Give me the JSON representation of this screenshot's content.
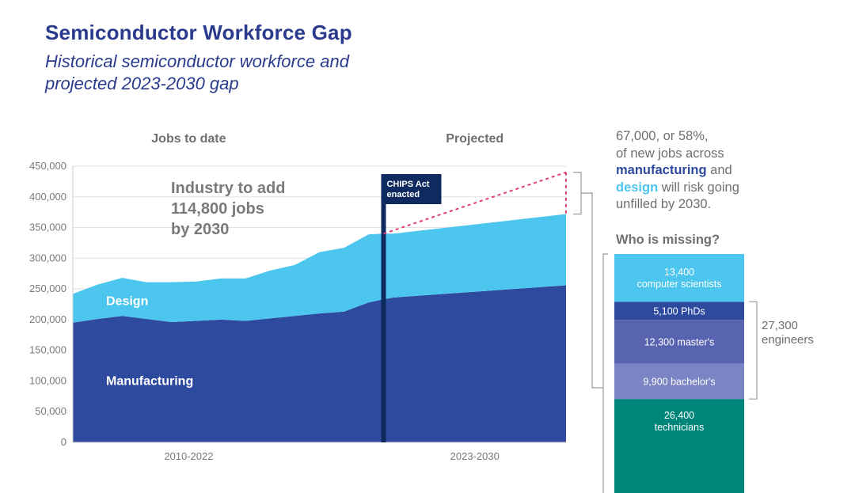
{
  "header": {
    "title": "Semiconductor Workforce Gap",
    "subtitle_line1": "Historical semiconductor workforce and",
    "subtitle_line2": "projected 2023-2030 gap"
  },
  "chart_data": [
    {
      "type": "area",
      "stacked": true,
      "ylim": [
        0,
        450000
      ],
      "yticks": [
        0,
        50000,
        100000,
        150000,
        200000,
        250000,
        300000,
        350000,
        400000,
        450000
      ],
      "ytick_labels": [
        "0",
        "50,000",
        "100,000",
        "150,000",
        "200,000",
        "250,000",
        "300,000",
        "350,000",
        "400,000",
        "450,000"
      ],
      "x_start": 2010,
      "x_end": 2030,
      "x_labels": [
        {
          "text": "2010-2022",
          "x": 2014.7
        },
        {
          "text": "2023-2030",
          "x": 2026.3
        }
      ],
      "section_labels": [
        {
          "text": "Jobs to date",
          "x": 2014.7
        },
        {
          "text": "Projected",
          "x": 2026.3
        }
      ],
      "x": [
        2010,
        2011,
        2012,
        2013,
        2014,
        2015,
        2016,
        2017,
        2018,
        2019,
        2020,
        2021,
        2022,
        2022.6,
        2023,
        2030
      ],
      "series": [
        {
          "name": "Manufacturing",
          "color": "#2e4a9e",
          "values": [
            195000,
            201000,
            206000,
            201000,
            196000,
            198000,
            200000,
            198000,
            202000,
            206000,
            210000,
            213000,
            228000,
            233000,
            236000,
            256000
          ]
        },
        {
          "name": "Design",
          "color": "#4cc6ee",
          "values": [
            47000,
            56000,
            62000,
            60000,
            65000,
            64000,
            67000,
            69000,
            78000,
            83000,
            100000,
            104000,
            111000,
            107000,
            104000,
            116000
          ]
        }
      ],
      "projected_demand": {
        "start": [
          2022.6,
          340000
        ],
        "end": [
          2030,
          440000
        ],
        "color": "#e0407a"
      },
      "vline": {
        "x": 2022.6,
        "label_line1": "CHIPS Act",
        "label_line2": "enacted",
        "color": "#0e2a5e"
      },
      "annotation": {
        "line1": "Industry to add",
        "line2": "114,800 jobs",
        "line3": "by 2030",
        "color": "#7a7a7a"
      }
    },
    {
      "type": "bar",
      "stacked": true,
      "title": "Who is missing?",
      "segments": [
        {
          "value": 26400,
          "label_line1": "26,400",
          "label_line2": "technicians",
          "color": "#00857a"
        },
        {
          "value": 9900,
          "label_line1": "9,900 bachelor's",
          "label_line2": "",
          "color": "#7b84c4"
        },
        {
          "value": 12300,
          "label_line1": "12,300 master's",
          "label_line2": "",
          "color": "#5964b0"
        },
        {
          "value": 5100,
          "label_line1": "5,100 PhDs",
          "label_line2": "",
          "color": "#2e4a9e"
        },
        {
          "value": 13400,
          "label_line1": "13,400",
          "label_line2": "computer scientists",
          "color": "#4cc6ee"
        }
      ]
    }
  ],
  "callout": {
    "line1": "67,000, or 58%,",
    "line2": "of new jobs across",
    "line3_em": "manufacturing",
    "line3_rest": " and",
    "line4_em": "design",
    "line4_rest": " will risk going",
    "line5": "unfilled by 2030."
  },
  "engineers": {
    "line1": "27,300",
    "line2": "engineers"
  }
}
